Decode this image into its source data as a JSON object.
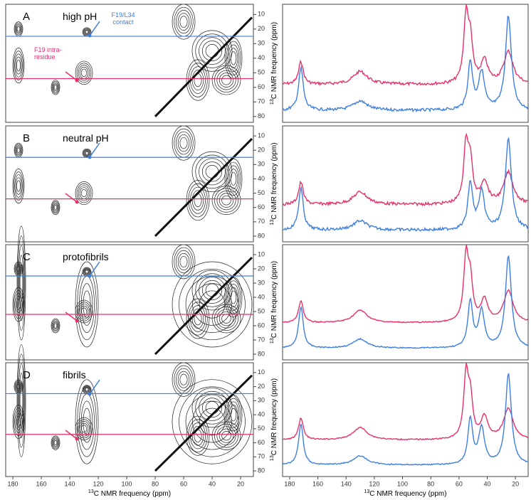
{
  "panels": [
    {
      "label": "A",
      "title": "high pH",
      "annotations": [
        {
          "lines": [
            "F19/L34",
            "contact"
          ],
          "color": "#3d7fe0"
        },
        {
          "lines": [
            "F19 intra-",
            "residue"
          ],
          "color": "#e8306b"
        }
      ],
      "reference_lines": [
        {
          "ppm": 25,
          "color": "#3d7fe0"
        },
        {
          "ppm": 54,
          "color": "#e8306b"
        }
      ]
    },
    {
      "label": "B",
      "title": "neutral pH",
      "annotations": [],
      "reference_lines": [
        {
          "ppm": 25,
          "color": "#3d7fe0"
        },
        {
          "ppm": 54,
          "color": "#e8306b"
        }
      ]
    },
    {
      "label": "C",
      "title": "protofibrils",
      "annotations": [],
      "reference_lines": [
        {
          "ppm": 25,
          "color": "#3d7fe0"
        },
        {
          "ppm": 52,
          "color": "#e8306b"
        }
      ]
    },
    {
      "label": "D",
      "title": "fibrils",
      "annotations": [],
      "reference_lines": [
        {
          "ppm": 25,
          "color": "#3d7fe0"
        },
        {
          "ppm": 54,
          "color": "#e8306b"
        }
      ]
    }
  ],
  "xlim": [
    185,
    11
  ],
  "ylim": [
    3,
    84
  ],
  "xticks": [
    180,
    160,
    140,
    120,
    100,
    80,
    60,
    40,
    20
  ],
  "yticks": [
    10,
    20,
    30,
    40,
    50,
    60,
    70,
    80
  ],
  "axis_label": {
    "sup": "13",
    "text": "C NMR frequency (ppm)"
  }
}
